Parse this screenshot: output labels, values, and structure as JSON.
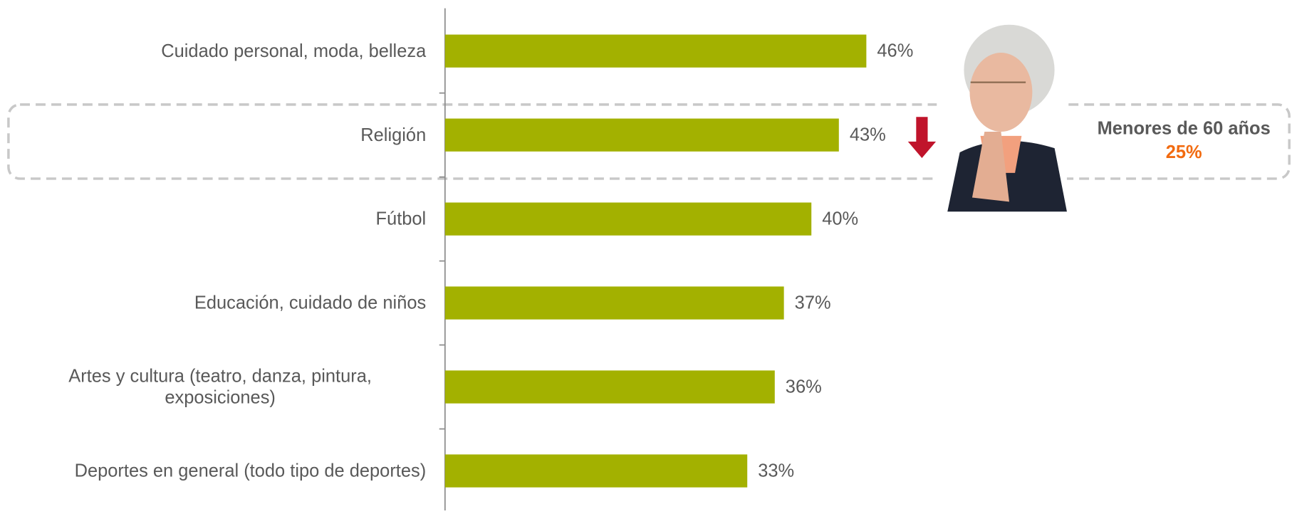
{
  "chart_data": {
    "type": "bar",
    "orientation": "horizontal",
    "categories": [
      "Cuidado personal, moda, belleza",
      "Religión",
      "Fútbol",
      "Educación, cuidado de niños",
      "Artes y cultura (teatro, danza, pintura, exposiciones)",
      "Deportes en general (todo tipo de deportes)"
    ],
    "values": [
      46,
      43,
      40,
      37,
      36,
      33
    ],
    "value_labels": [
      "46%",
      "43%",
      "40%",
      "37%",
      "36%",
      "33%"
    ],
    "color": "#a3b100",
    "annotation": {
      "label": "Menores de 60 años",
      "value_label": "25%",
      "color": "#f26b10"
    }
  }
}
